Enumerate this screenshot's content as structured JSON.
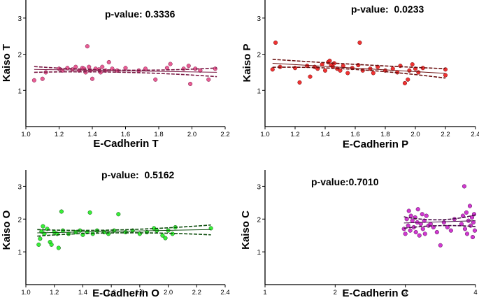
{
  "chart_data": [
    {
      "type": "scatter",
      "xlabel": "E-Cadherin T",
      "ylabel": "Kaiso T",
      "annotation": "p-value: 0.3336",
      "xlim": [
        1.0,
        2.2
      ],
      "ylim": [
        0,
        3.5
      ],
      "xticks": [
        "1.0",
        "1.2",
        "1.4",
        "1.6",
        "1.8",
        "2.0",
        "2.2"
      ],
      "yticks": [
        "1",
        "2",
        "3"
      ],
      "marker_color": "#e64d8a",
      "band_color": "#7a1a45",
      "points": [
        [
          1.05,
          1.28
        ],
        [
          1.1,
          1.32
        ],
        [
          1.12,
          1.5
        ],
        [
          1.2,
          1.6
        ],
        [
          1.22,
          1.55
        ],
        [
          1.25,
          1.62
        ],
        [
          1.28,
          1.58
        ],
        [
          1.3,
          1.65
        ],
        [
          1.32,
          1.55
        ],
        [
          1.34,
          1.62
        ],
        [
          1.35,
          1.6
        ],
        [
          1.36,
          1.5
        ],
        [
          1.37,
          2.22
        ],
        [
          1.38,
          1.65
        ],
        [
          1.39,
          1.55
        ],
        [
          1.4,
          1.32
        ],
        [
          1.42,
          1.6
        ],
        [
          1.44,
          1.58
        ],
        [
          1.45,
          1.5
        ],
        [
          1.46,
          1.65
        ],
        [
          1.48,
          1.55
        ],
        [
          1.5,
          1.78
        ],
        [
          1.52,
          1.6
        ],
        [
          1.55,
          1.55
        ],
        [
          1.6,
          1.62
        ],
        [
          1.68,
          1.55
        ],
        [
          1.72,
          1.6
        ],
        [
          1.78,
          1.3
        ],
        [
          1.85,
          1.62
        ],
        [
          1.87,
          1.73
        ],
        [
          1.95,
          1.6
        ],
        [
          1.98,
          1.68
        ],
        [
          1.99,
          1.18
        ],
        [
          2.02,
          1.6
        ],
        [
          2.05,
          1.55
        ],
        [
          2.1,
          1.3
        ],
        [
          2.14,
          1.6
        ]
      ],
      "fit": {
        "x": [
          1.05,
          2.15
        ],
        "y": [
          1.58,
          1.5
        ]
      },
      "ci_upper": {
        "x": [
          1.05,
          1.6,
          2.15
        ],
        "y": [
          1.66,
          1.56,
          1.62
        ]
      },
      "ci_lower": {
        "x": [
          1.05,
          1.6,
          2.15
        ],
        "y": [
          1.5,
          1.5,
          1.38
        ]
      }
    },
    {
      "type": "scatter",
      "xlabel": "E-Cadherin P",
      "ylabel": "Kaiso P",
      "annotation": "p-value:  0.0233",
      "xlim": [
        1.0,
        2.4
      ],
      "ylim": [
        0,
        3.5
      ],
      "xticks": [
        "1.0",
        "1.2",
        "1.4",
        "1.6",
        "1.8",
        "2.0",
        "2.2",
        "2.4"
      ],
      "yticks": [
        "1",
        "2",
        "3"
      ],
      "marker_color": "#ee1c1c",
      "band_color": "#6b1010",
      "points": [
        [
          1.05,
          1.58
        ],
        [
          1.07,
          2.32
        ],
        [
          1.1,
          1.65
        ],
        [
          1.2,
          1.62
        ],
        [
          1.23,
          1.22
        ],
        [
          1.28,
          1.68
        ],
        [
          1.3,
          1.38
        ],
        [
          1.33,
          1.65
        ],
        [
          1.35,
          1.6
        ],
        [
          1.38,
          1.72
        ],
        [
          1.4,
          1.55
        ],
        [
          1.42,
          1.78
        ],
        [
          1.43,
          1.82
        ],
        [
          1.44,
          1.7
        ],
        [
          1.45,
          1.65
        ],
        [
          1.46,
          1.75
        ],
        [
          1.48,
          1.6
        ],
        [
          1.5,
          1.55
        ],
        [
          1.52,
          1.68
        ],
        [
          1.55,
          1.48
        ],
        [
          1.58,
          1.62
        ],
        [
          1.62,
          1.7
        ],
        [
          1.63,
          2.32
        ],
        [
          1.65,
          1.55
        ],
        [
          1.7,
          1.6
        ],
        [
          1.72,
          1.48
        ],
        [
          1.75,
          1.65
        ],
        [
          1.8,
          1.55
        ],
        [
          1.85,
          1.6
        ],
        [
          1.88,
          1.5
        ],
        [
          1.9,
          1.68
        ],
        [
          1.93,
          1.2
        ],
        [
          1.95,
          1.3
        ],
        [
          1.96,
          1.55
        ],
        [
          1.98,
          1.72
        ],
        [
          2.0,
          1.6
        ],
        [
          2.02,
          1.5
        ],
        [
          2.05,
          1.62
        ],
        [
          2.2,
          1.58
        ],
        [
          2.2,
          1.42
        ]
      ],
      "fit": {
        "x": [
          1.05,
          2.2
        ],
        "y": [
          1.75,
          1.47
        ]
      },
      "ci_upper": {
        "x": [
          1.05,
          1.6,
          2.2
        ],
        "y": [
          1.86,
          1.72,
          1.6
        ]
      },
      "ci_lower": {
        "x": [
          1.05,
          1.6,
          2.2
        ],
        "y": [
          1.64,
          1.58,
          1.34
        ]
      }
    },
    {
      "type": "scatter",
      "xlabel": "E-Cadherin O",
      "ylabel": "Kaiso O",
      "annotation": "p-value:  0.5162",
      "xlim": [
        1.0,
        2.4
      ],
      "ylim": [
        0,
        3.5
      ],
      "xticks": [
        "1.0",
        "1.2",
        "1.4",
        "1.6",
        "1.8",
        "2.0",
        "2.2",
        "2.4"
      ],
      "yticks": [
        "1",
        "2",
        "3"
      ],
      "marker_color": "#22ee22",
      "band_color": "#0f4f0f",
      "points": [
        [
          1.09,
          1.22
        ],
        [
          1.1,
          1.4
        ],
        [
          1.11,
          1.62
        ],
        [
          1.12,
          1.78
        ],
        [
          1.13,
          1.55
        ],
        [
          1.15,
          1.7
        ],
        [
          1.17,
          1.3
        ],
        [
          1.18,
          1.22
        ],
        [
          1.2,
          1.6
        ],
        [
          1.22,
          1.55
        ],
        [
          1.23,
          1.12
        ],
        [
          1.25,
          2.23
        ],
        [
          1.26,
          1.65
        ],
        [
          1.3,
          1.55
        ],
        [
          1.35,
          1.6
        ],
        [
          1.38,
          1.65
        ],
        [
          1.4,
          1.52
        ],
        [
          1.43,
          1.6
        ],
        [
          1.45,
          2.2
        ],
        [
          1.47,
          1.55
        ],
        [
          1.5,
          1.65
        ],
        [
          1.55,
          1.6
        ],
        [
          1.58,
          1.55
        ],
        [
          1.62,
          1.65
        ],
        [
          1.65,
          2.15
        ],
        [
          1.7,
          1.6
        ],
        [
          1.75,
          1.65
        ],
        [
          1.8,
          1.55
        ],
        [
          1.85,
          1.6
        ],
        [
          1.9,
          1.72
        ],
        [
          1.92,
          1.65
        ],
        [
          1.96,
          1.5
        ],
        [
          1.98,
          1.42
        ],
        [
          2.0,
          1.65
        ],
        [
          2.03,
          1.55
        ],
        [
          2.05,
          1.75
        ],
        [
          2.3,
          1.72
        ]
      ],
      "fit": {
        "x": [
          1.08,
          2.3
        ],
        "y": [
          1.58,
          1.68
        ]
      },
      "ci_upper": {
        "x": [
          1.08,
          1.65,
          2.3
        ],
        "y": [
          1.68,
          1.67,
          1.82
        ]
      },
      "ci_lower": {
        "x": [
          1.08,
          1.65,
          2.3
        ],
        "y": [
          1.48,
          1.58,
          1.52
        ]
      }
    },
    {
      "type": "scatter",
      "xlabel": "E-Cadherin C",
      "ylabel": "Kaiso C",
      "annotation": "p-value:0.7010",
      "xlim": [
        1,
        4
      ],
      "ylim": [
        0,
        3.5
      ],
      "xticks": [
        "1",
        "2",
        "3",
        "4"
      ],
      "yticks": [
        "1",
        "2",
        "3"
      ],
      "marker_color": "#cc22cc",
      "band_color": "#4a0f4a",
      "points": [
        [
          2.98,
          1.7
        ],
        [
          3.0,
          1.55
        ],
        [
          3.02,
          2.0
        ],
        [
          3.04,
          1.8
        ],
        [
          3.05,
          2.25
        ],
        [
          3.07,
          1.65
        ],
        [
          3.08,
          2.1
        ],
        [
          3.1,
          1.95
        ],
        [
          3.12,
          1.75
        ],
        [
          3.14,
          2.05
        ],
        [
          3.15,
          1.6
        ],
        [
          3.17,
          1.9
        ],
        [
          3.18,
          2.3
        ],
        [
          3.2,
          1.5
        ],
        [
          3.22,
          1.85
        ],
        [
          3.24,
          2.15
        ],
        [
          3.25,
          1.7
        ],
        [
          3.27,
          1.95
        ],
        [
          3.28,
          1.55
        ],
        [
          3.3,
          2.1
        ],
        [
          3.33,
          1.8
        ],
        [
          3.36,
          1.85
        ],
        [
          3.4,
          1.75
        ],
        [
          3.45,
          1.6
        ],
        [
          3.5,
          1.2
        ],
        [
          3.55,
          1.9
        ],
        [
          3.6,
          1.75
        ],
        [
          3.65,
          1.65
        ],
        [
          3.7,
          2.0
        ],
        [
          3.8,
          1.85
        ],
        [
          3.82,
          2.1
        ],
        [
          3.84,
          3.0
        ],
        [
          3.85,
          1.7
        ],
        [
          3.87,
          2.2
        ],
        [
          3.88,
          1.55
        ],
        [
          3.9,
          1.95
        ],
        [
          3.92,
          2.4
        ],
        [
          3.93,
          1.8
        ],
        [
          3.95,
          2.05
        ],
        [
          3.96,
          1.45
        ],
        [
          3.97,
          1.9
        ],
        [
          3.98,
          2.15
        ],
        [
          3.99,
          1.65
        ]
      ],
      "fit": {
        "x": [
          2.98,
          4.0
        ],
        "y": [
          1.88,
          1.95
        ]
      },
      "ci_upper": {
        "x": [
          2.98,
          3.5,
          4.0
        ],
        "y": [
          2.07,
          1.98,
          2.13
        ]
      },
      "ci_lower": {
        "x": [
          2.98,
          3.5,
          4.0
        ],
        "y": [
          1.72,
          1.8,
          1.77
        ]
      }
    }
  ]
}
